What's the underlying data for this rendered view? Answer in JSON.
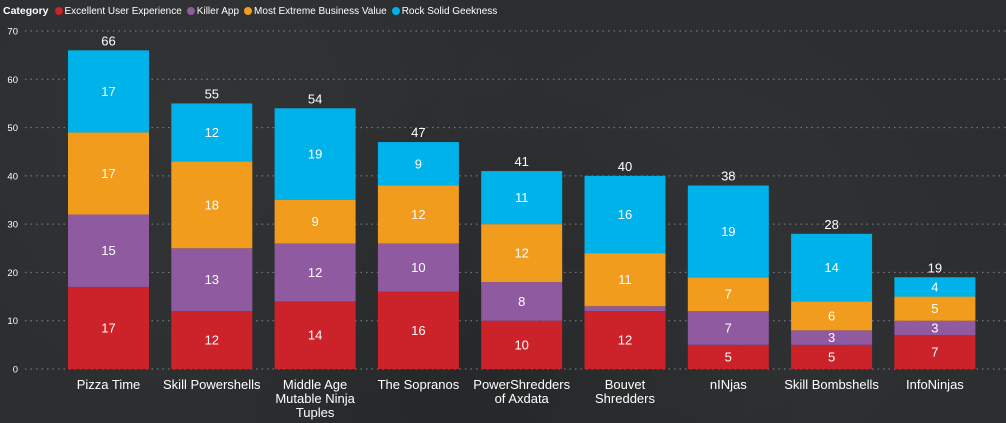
{
  "chart_data": {
    "type": "bar",
    "stacked": true,
    "legend_title": "Category",
    "legend_position": "top-left",
    "categories": [
      [
        "Pizza Time"
      ],
      [
        "Skill Powershells"
      ],
      [
        "Middle Age",
        "Mutable Ninja",
        "Tuples"
      ],
      [
        "The Sopranos"
      ],
      [
        "PowerShredders",
        "of Axdata"
      ],
      [
        "Bouvet",
        "Shredders"
      ],
      [
        "nINjas"
      ],
      [
        "Skill Bombshells"
      ],
      [
        "InfoNinjas"
      ]
    ],
    "series": [
      {
        "name": "Excellent User Experience",
        "color": "#cc2229",
        "values": [
          17,
          12,
          14,
          16,
          10,
          12,
          5,
          5,
          7
        ]
      },
      {
        "name": "Killer App",
        "color": "#8f5aa0",
        "values": [
          15,
          13,
          12,
          10,
          8,
          1,
          7,
          3,
          3
        ]
      },
      {
        "name": "Most Extreme Business Value",
        "color": "#f19c1d",
        "values": [
          17,
          18,
          9,
          12,
          12,
          11,
          7,
          6,
          5
        ]
      },
      {
        "name": "Rock Solid Geekness",
        "color": "#00b2ea",
        "values": [
          17,
          12,
          19,
          9,
          11,
          16,
          19,
          14,
          4
        ]
      }
    ],
    "totals": [
      66,
      55,
      54,
      47,
      41,
      40,
      38,
      28,
      19
    ],
    "hidden_labels": [
      [
        5,
        1
      ]
    ],
    "ylim": [
      0,
      70
    ],
    "yticks": [
      0,
      10,
      20,
      30,
      40,
      50,
      60,
      70
    ],
    "grid": true,
    "xlabel": "",
    "ylabel": ""
  }
}
